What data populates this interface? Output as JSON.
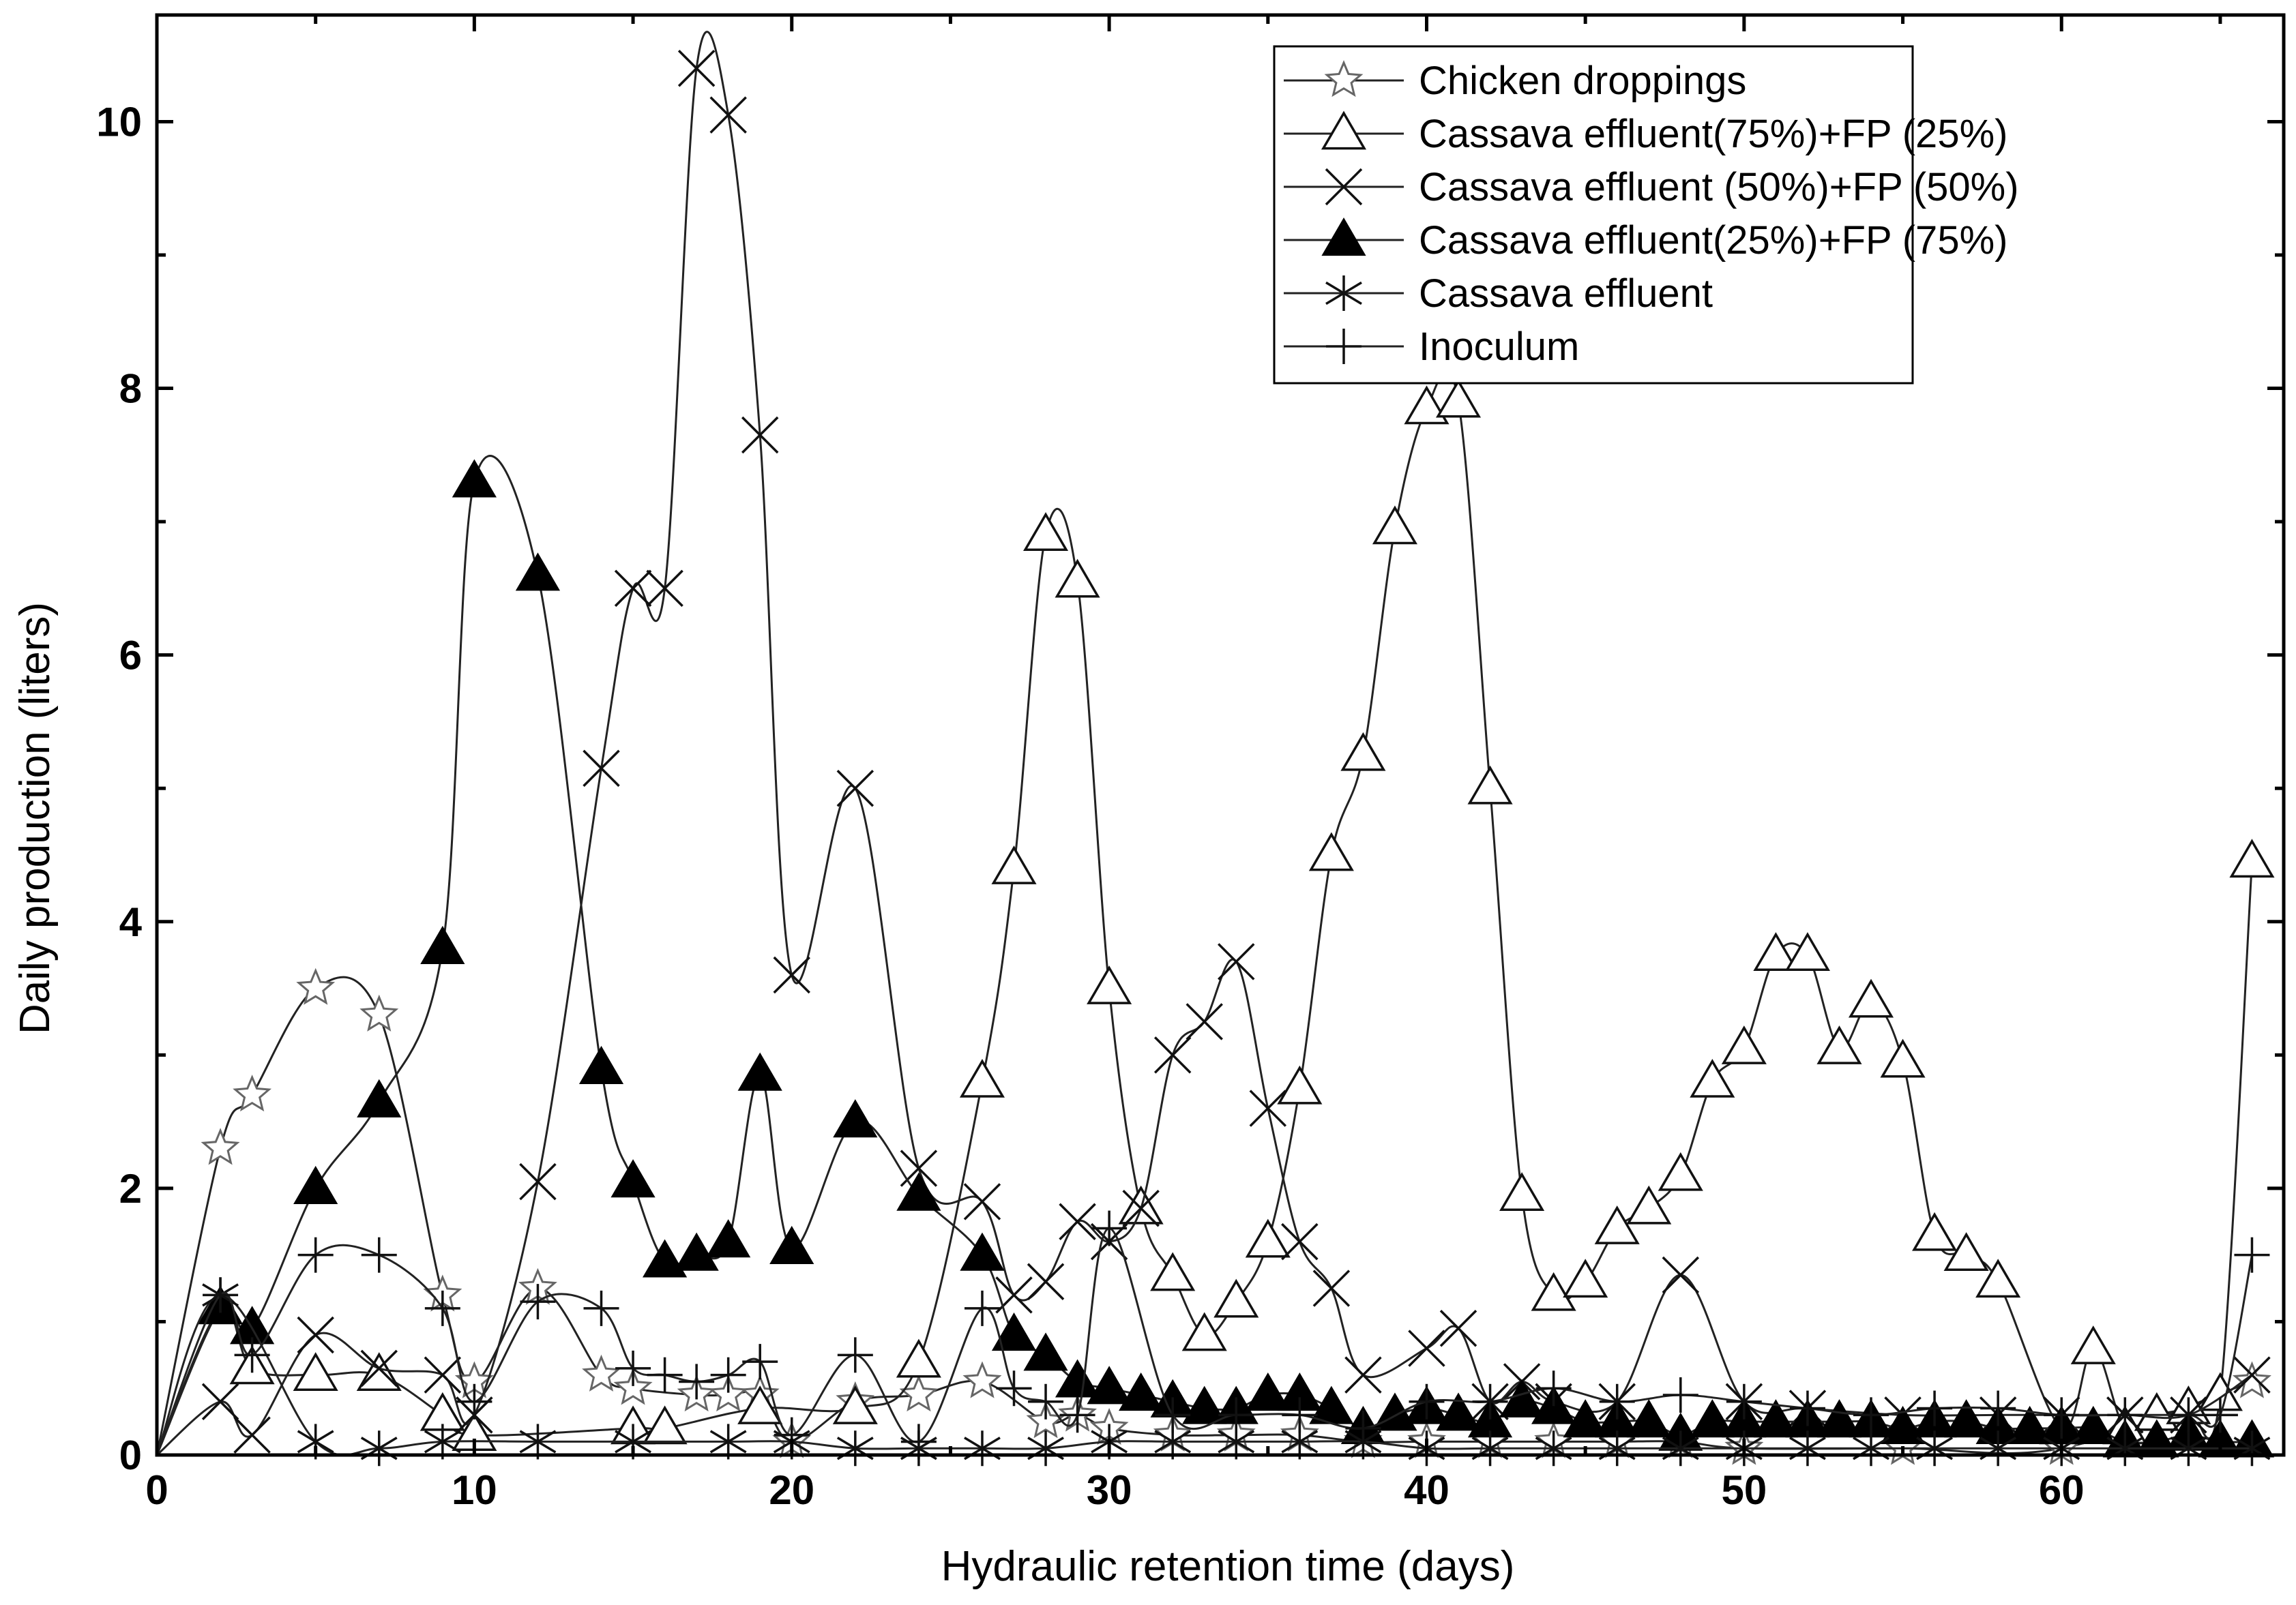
{
  "chart_data": {
    "type": "line",
    "title": "",
    "xlabel": "Hydraulic retention time (days)",
    "ylabel": "Daily production (liters)",
    "xlim": [
      0,
      67
    ],
    "ylim": [
      0,
      10.8
    ],
    "xticks": [
      0,
      10,
      20,
      30,
      40,
      50,
      60
    ],
    "yticks": [
      0,
      2,
      4,
      6,
      8,
      10
    ],
    "legend_position": "top-right",
    "series": [
      {
        "name": "Chicken droppings",
        "marker": "star",
        "x": [
          0,
          2,
          3,
          5,
          7,
          9,
          10,
          12,
          14,
          15,
          17,
          18,
          19,
          20,
          22,
          24,
          26,
          28,
          29,
          30,
          32,
          34,
          36,
          38,
          40,
          42,
          44,
          46,
          48,
          50,
          55,
          60,
          66
        ],
        "values": [
          0,
          2.3,
          2.7,
          3.5,
          3.3,
          1.2,
          0.55,
          1.25,
          0.6,
          0.5,
          0.45,
          0.45,
          0.45,
          0.1,
          0.4,
          0.45,
          0.55,
          0.25,
          0.3,
          0.2,
          0.15,
          0.15,
          0.15,
          0.1,
          0.1,
          0.1,
          0.1,
          0.1,
          0.1,
          0.05,
          0.05,
          0.05,
          0.55
        ]
      },
      {
        "name": "Cassava effluent(75%)+FP (25%)",
        "marker": "triangle-open",
        "x": [
          0,
          2,
          3,
          5,
          7,
          9,
          10,
          15,
          16,
          19,
          22,
          24,
          26,
          27,
          28,
          29,
          30,
          31,
          32,
          33,
          34,
          35,
          36,
          37,
          38,
          39,
          40,
          41,
          42,
          43,
          44,
          45,
          46,
          47,
          48,
          49,
          50,
          51,
          52,
          53,
          54,
          55,
          56,
          57,
          58,
          60,
          61,
          62,
          63,
          64,
          65,
          66
        ],
        "values": [
          0,
          1.1,
          0.65,
          0.6,
          0.6,
          0.3,
          0.15,
          0.2,
          0.2,
          0.35,
          0.35,
          0.7,
          2.8,
          4.4,
          6.9,
          6.55,
          3.5,
          1.85,
          1.35,
          0.9,
          1.15,
          1.6,
          2.75,
          4.5,
          5.25,
          6.95,
          7.85,
          7.9,
          5.0,
          1.95,
          1.2,
          1.3,
          1.7,
          1.85,
          2.1,
          2.8,
          3.05,
          3.75,
          3.75,
          3.05,
          3.4,
          2.95,
          1.65,
          1.5,
          1.3,
          0.2,
          0.8,
          0.2,
          0.3,
          0.35,
          0.45,
          4.45
        ]
      },
      {
        "name": "Cassava effluent (50%)+FP (50%)",
        "marker": "x",
        "x": [
          0,
          2,
          3,
          5,
          7,
          9,
          10,
          12,
          14,
          15,
          16,
          17,
          18,
          19,
          20,
          22,
          24,
          26,
          27,
          28,
          29,
          30,
          31,
          32,
          33,
          34,
          35,
          36,
          37,
          38,
          40,
          41,
          42,
          43,
          44,
          46,
          48,
          50,
          52,
          55,
          58,
          60,
          62,
          64,
          66
        ],
        "values": [
          0,
          0.4,
          0.15,
          0.9,
          0.65,
          0.6,
          0.3,
          2.05,
          5.15,
          6.5,
          6.5,
          10.4,
          10.05,
          7.65,
          3.6,
          5.0,
          2.15,
          1.9,
          1.2,
          1.3,
          1.75,
          1.6,
          1.85,
          3.0,
          3.25,
          3.7,
          2.6,
          1.6,
          1.25,
          0.6,
          0.8,
          0.95,
          0.4,
          0.55,
          0.4,
          0.4,
          1.35,
          0.4,
          0.35,
          0.3,
          0.3,
          0.3,
          0.3,
          0.3,
          0.6
        ]
      },
      {
        "name": "Cassava effluent(25%)+FP (75%)",
        "marker": "triangle-filled",
        "x": [
          0,
          2,
          3,
          5,
          7,
          9,
          10,
          12,
          14,
          15,
          16,
          17,
          18,
          19,
          20,
          22,
          24,
          26,
          27,
          28,
          29,
          30,
          31,
          32,
          33,
          34,
          35,
          36,
          37,
          38,
          39,
          40,
          41,
          42,
          43,
          44,
          45,
          46,
          47,
          48,
          49,
          50,
          51,
          52,
          53,
          54,
          55,
          56,
          57,
          58,
          59,
          60,
          61,
          62,
          63,
          64,
          65,
          66
        ],
        "values": [
          0,
          1.1,
          0.95,
          2.0,
          2.65,
          3.8,
          7.3,
          6.6,
          2.9,
          2.05,
          1.45,
          1.5,
          1.6,
          2.85,
          1.55,
          2.5,
          1.95,
          1.5,
          0.9,
          0.75,
          0.55,
          0.5,
          0.45,
          0.4,
          0.35,
          0.35,
          0.45,
          0.45,
          0.35,
          0.2,
          0.3,
          0.35,
          0.3,
          0.25,
          0.4,
          0.35,
          0.25,
          0.25,
          0.25,
          0.15,
          0.25,
          0.25,
          0.25,
          0.25,
          0.25,
          0.25,
          0.2,
          0.25,
          0.25,
          0.2,
          0.2,
          0.2,
          0.2,
          0.1,
          0.1,
          0.15,
          0.1,
          0.1
        ]
      },
      {
        "name": "Cassava effluent",
        "marker": "asterisk",
        "x": [
          0,
          2,
          5,
          7,
          9,
          12,
          15,
          18,
          20,
          22,
          24,
          26,
          28,
          30,
          32,
          34,
          36,
          38,
          40,
          42,
          44,
          46,
          48,
          50,
          52,
          54,
          56,
          58,
          60,
          62,
          64,
          66
        ],
        "values": [
          0,
          1.2,
          0.1,
          0.05,
          0.1,
          0.1,
          0.1,
          0.1,
          0.1,
          0.05,
          0.05,
          0.05,
          0.05,
          0.1,
          0.1,
          0.1,
          0.1,
          0.1,
          0.05,
          0.05,
          0.05,
          0.05,
          0.05,
          0.05,
          0.05,
          0.05,
          0.05,
          0.05,
          0.05,
          0.05,
          0.05,
          0.05
        ]
      },
      {
        "name": "Inoculum",
        "marker": "plus",
        "x": [
          0,
          2,
          3,
          5,
          7,
          9,
          10,
          12,
          14,
          15,
          16,
          17,
          18,
          19,
          20,
          22,
          24,
          26,
          27,
          28,
          29,
          30,
          32,
          34,
          36,
          38,
          40,
          42,
          44,
          46,
          48,
          50,
          52,
          54,
          56,
          58,
          60,
          62,
          64,
          65,
          66
        ],
        "values": [
          0,
          1.2,
          0.75,
          1.5,
          1.5,
          1.1,
          0.4,
          1.15,
          1.1,
          0.65,
          0.6,
          0.55,
          0.6,
          0.7,
          0.15,
          0.75,
          0.1,
          1.1,
          0.5,
          0.4,
          0.3,
          1.7,
          0.3,
          0.3,
          0.3,
          0.2,
          0.4,
          0.4,
          0.5,
          0.4,
          0.45,
          0.4,
          0.35,
          0.3,
          0.35,
          0.35,
          0.3,
          0.3,
          0.3,
          0.3,
          1.5
        ]
      }
    ]
  }
}
